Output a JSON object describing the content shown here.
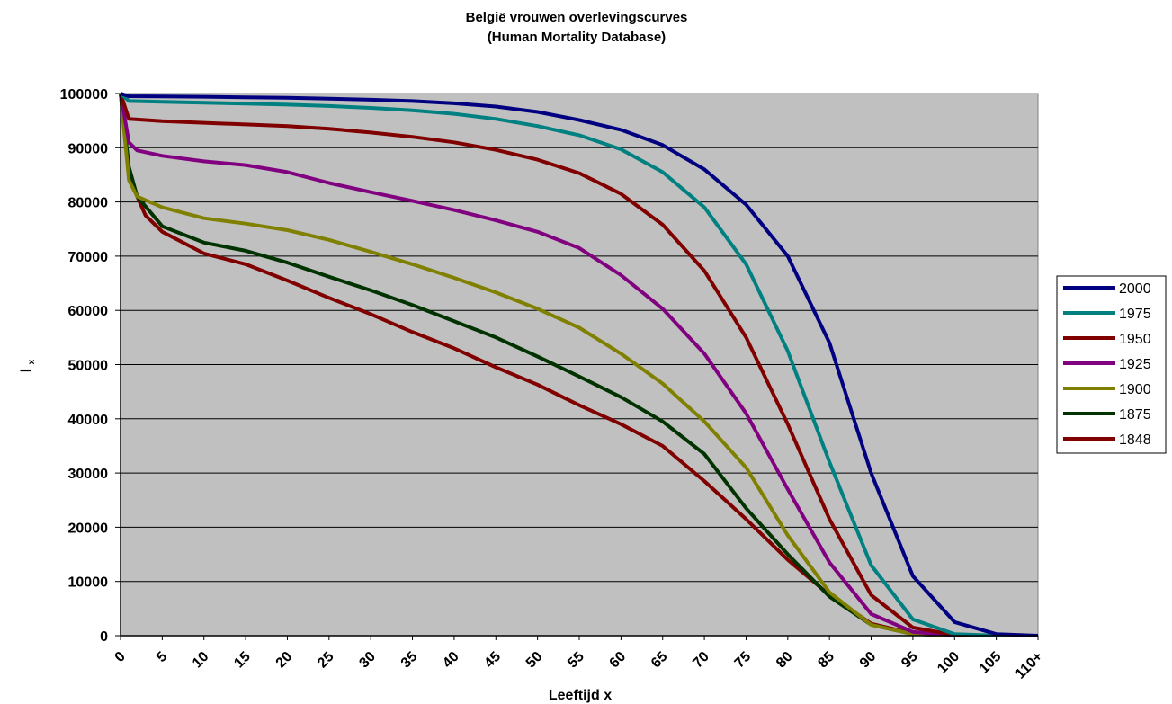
{
  "chart_data": {
    "type": "line",
    "title_line1": "België vrouwen overlevingscurves",
    "title_line2": "(Human Mortality Database)",
    "xlabel": "Leeftijd x",
    "ylabel": "l",
    "ylabel_sub": "x",
    "xlim": [
      0,
      110
    ],
    "ylim": [
      0,
      100000
    ],
    "y_ticks": [
      "0",
      "10000",
      "20000",
      "30000",
      "40000",
      "50000",
      "60000",
      "70000",
      "80000",
      "90000",
      "100000"
    ],
    "x_ticks": [
      "0",
      "5",
      "10",
      "15",
      "20",
      "25",
      "30",
      "35",
      "40",
      "45",
      "50",
      "55",
      "60",
      "65",
      "70",
      "75",
      "80",
      "85",
      "90",
      "95",
      "100",
      "105",
      "110+"
    ],
    "grid": "horizontal",
    "plot_background": "#c0c0c0",
    "legend_position": "right",
    "series": [
      {
        "name": "2000",
        "color": "#000080",
        "x": [
          0,
          1,
          5,
          10,
          15,
          20,
          25,
          30,
          35,
          40,
          45,
          50,
          55,
          60,
          65,
          70,
          75,
          80,
          85,
          90,
          95,
          100,
          105,
          110
        ],
        "y": [
          100000,
          99500,
          99450,
          99400,
          99300,
          99200,
          99050,
          98850,
          98600,
          98200,
          97600,
          96600,
          95100,
          93300,
          90500,
          86000,
          79500,
          70000,
          54000,
          30000,
          11000,
          2500,
          300,
          0
        ]
      },
      {
        "name": "1975",
        "color": "#008080",
        "x": [
          0,
          1,
          5,
          10,
          15,
          20,
          25,
          30,
          35,
          40,
          45,
          50,
          55,
          60,
          65,
          70,
          75,
          80,
          85,
          90,
          95,
          100,
          105,
          110
        ],
        "y": [
          100000,
          98600,
          98450,
          98300,
          98150,
          97950,
          97700,
          97350,
          96900,
          96250,
          95300,
          94000,
          92300,
          89700,
          85500,
          79000,
          68500,
          52500,
          32000,
          13000,
          3000,
          300,
          20,
          0
        ]
      },
      {
        "name": "1950",
        "color": "#800000",
        "x": [
          0,
          1,
          5,
          10,
          15,
          20,
          25,
          30,
          35,
          40,
          45,
          50,
          55,
          60,
          65,
          70,
          75,
          80,
          85,
          90,
          95,
          100,
          105,
          110
        ],
        "y": [
          100000,
          95300,
          94900,
          94600,
          94300,
          94000,
          93500,
          92800,
          92000,
          91000,
          89600,
          87800,
          85300,
          81500,
          75800,
          67300,
          55000,
          39000,
          21500,
          7500,
          1500,
          150,
          10,
          0
        ]
      },
      {
        "name": "1925",
        "color": "#800080",
        "x": [
          0,
          1,
          2,
          5,
          10,
          15,
          20,
          25,
          30,
          35,
          40,
          45,
          50,
          55,
          60,
          65,
          70,
          75,
          80,
          85,
          90,
          95,
          100,
          105,
          110
        ],
        "y": [
          100000,
          91000,
          89500,
          88500,
          87500,
          86800,
          85500,
          83500,
          81800,
          80200,
          78500,
          76600,
          74500,
          71500,
          66500,
          60300,
          52000,
          41000,
          27000,
          13500,
          4000,
          700,
          50,
          0,
          0
        ]
      },
      {
        "name": "1900",
        "color": "#808000",
        "x": [
          0,
          1,
          2,
          5,
          10,
          15,
          20,
          25,
          30,
          35,
          40,
          45,
          50,
          55,
          60,
          65,
          70,
          75,
          80,
          85,
          90,
          95,
          100,
          105,
          110
        ],
        "y": [
          100000,
          84000,
          81000,
          79000,
          77000,
          76000,
          74800,
          73000,
          70800,
          68500,
          66000,
          63300,
          60300,
          56800,
          52000,
          46500,
          39500,
          31000,
          18500,
          8000,
          2000,
          300,
          30,
          0,
          0
        ]
      },
      {
        "name": "1875",
        "color": "#003300",
        "x": [
          0,
          1,
          2,
          5,
          10,
          15,
          20,
          25,
          30,
          35,
          40,
          45,
          50,
          55,
          60,
          65,
          70,
          75,
          80,
          85,
          90,
          95,
          100,
          105,
          110
        ],
        "y": [
          100000,
          86500,
          81000,
          75500,
          72500,
          71000,
          68800,
          66200,
          63700,
          61000,
          58000,
          55000,
          51500,
          47800,
          44000,
          39500,
          33500,
          23500,
          15000,
          7200,
          2000,
          300,
          20,
          0,
          0
        ]
      },
      {
        "name": "1848",
        "color": "#800000",
        "x": [
          0,
          1,
          2,
          3,
          5,
          10,
          15,
          20,
          25,
          30,
          35,
          40,
          45,
          50,
          55,
          60,
          65,
          70,
          75,
          80,
          85,
          90,
          95,
          100,
          105,
          110
        ],
        "y": [
          100000,
          85000,
          81000,
          77500,
          74500,
          70500,
          68500,
          65500,
          62300,
          59300,
          56000,
          53000,
          49500,
          46300,
          42500,
          39000,
          35000,
          28500,
          21500,
          14000,
          7500,
          2200,
          400,
          30,
          0,
          0
        ]
      }
    ]
  }
}
